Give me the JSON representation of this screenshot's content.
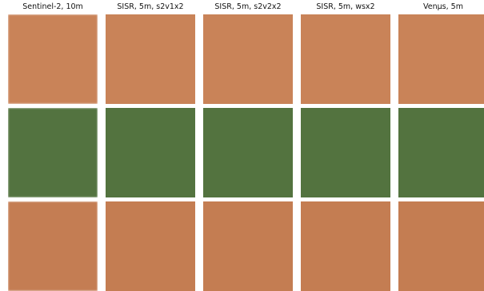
{
  "columns": [
    {
      "title": "Sentinel-2, 10m"
    },
    {
      "title": "SISR, 5m, s2v1x2"
    },
    {
      "title": "SISR, 5m, s2v2x2"
    },
    {
      "title": "SISR, 5m, wsx2"
    },
    {
      "title": "Venµs, 5m"
    }
  ],
  "rows": [
    {
      "scene": "arid-rocky-terrain",
      "colors": {
        "base": "#c98358",
        "light": "#e4b58a",
        "dark": "#3d2b1f",
        "green": "#5f7040"
      }
    },
    {
      "scene": "green-fields-with-roads",
      "colors": {
        "base": "#53733f",
        "light": "#c9c8b6",
        "dark": "#2e4526",
        "green": "#4f7d38"
      }
    },
    {
      "scene": "orange-soil-with-vegetation",
      "colors": {
        "base": "#c47d52",
        "light": "#e7ad7e",
        "dark": "#4a3527",
        "green": "#4f7a3c"
      }
    }
  ]
}
